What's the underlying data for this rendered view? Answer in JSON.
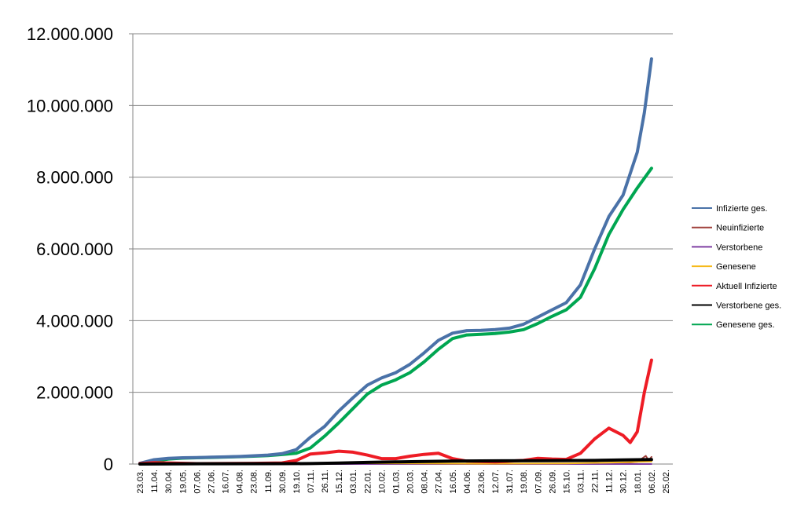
{
  "chart_data": {
    "type": "line",
    "title": "",
    "xlabel": "",
    "ylabel": "",
    "ylim": [
      0,
      12000000
    ],
    "yticks": [
      0,
      2000000,
      4000000,
      6000000,
      8000000,
      10000000,
      12000000
    ],
    "ytick_labels": [
      "0",
      "2.000.000",
      "4.000.000",
      "6.000.000",
      "8.000.000",
      "10.000.000",
      "12.000.000"
    ],
    "grid": true,
    "legend_position": "right",
    "x_labels": [
      "23.03.",
      "11.04.",
      "30.04.",
      "19.05.",
      "07.06.",
      "27.06.",
      "16.07.",
      "04.08.",
      "23.08.",
      "11.09.",
      "30.09.",
      "19.10.",
      "07.11.",
      "26.11.",
      "15.12.",
      "03.01.",
      "22.01.",
      "10.02.",
      "01.03.",
      "20.03.",
      "08.04.",
      "27.04.",
      "16.05.",
      "04.06.",
      "23.06.",
      "12.07.",
      "31.07.",
      "19.08.",
      "07.09.",
      "26.09.",
      "15.10.",
      "03.11.",
      "22.11.",
      "11.12.",
      "30.12.",
      "18.01.",
      "06.02.",
      "25.02."
    ],
    "x_index_range": [
      0,
      37
    ],
    "series": [
      {
        "name": "Infizierte ges.",
        "color": "#4a72a8",
        "points": [
          [
            0,
            20000
          ],
          [
            1,
            120000
          ],
          [
            2,
            160000
          ],
          [
            3,
            175000
          ],
          [
            4,
            180000
          ],
          [
            5,
            190000
          ],
          [
            6,
            200000
          ],
          [
            7,
            210000
          ],
          [
            8,
            230000
          ],
          [
            9,
            250000
          ],
          [
            10,
            290000
          ],
          [
            11,
            400000
          ],
          [
            12,
            750000
          ],
          [
            13,
            1050000
          ],
          [
            14,
            1480000
          ],
          [
            15,
            1850000
          ],
          [
            16,
            2200000
          ],
          [
            17,
            2400000
          ],
          [
            18,
            2550000
          ],
          [
            19,
            2780000
          ],
          [
            20,
            3100000
          ],
          [
            21,
            3450000
          ],
          [
            22,
            3650000
          ],
          [
            23,
            3720000
          ],
          [
            24,
            3730000
          ],
          [
            25,
            3750000
          ],
          [
            26,
            3790000
          ],
          [
            27,
            3900000
          ],
          [
            28,
            4100000
          ],
          [
            29,
            4300000
          ],
          [
            30,
            4500000
          ],
          [
            31,
            5000000
          ],
          [
            32,
            6000000
          ],
          [
            33,
            6900000
          ],
          [
            34,
            7500000
          ],
          [
            35,
            8700000
          ],
          [
            35.5,
            9800000
          ],
          [
            36,
            11300000
          ]
        ]
      },
      {
        "name": "Neuinfizierte",
        "color": "#a0413c",
        "points": [
          [
            0,
            1000
          ],
          [
            5,
            500
          ],
          [
            10,
            2000
          ],
          [
            14,
            25000
          ],
          [
            16,
            15000
          ],
          [
            20,
            15000
          ],
          [
            23,
            3000
          ],
          [
            28,
            10000
          ],
          [
            32,
            20000
          ],
          [
            34,
            25000
          ],
          [
            35,
            60000
          ],
          [
            35.6,
            230000
          ],
          [
            35.8,
            100000
          ],
          [
            36,
            200000
          ]
        ]
      },
      {
        "name": "Verstorbene",
        "color": "#7f3fa3",
        "points": [
          [
            0,
            0
          ],
          [
            10,
            200
          ],
          [
            14,
            800
          ],
          [
            16,
            900
          ],
          [
            20,
            600
          ],
          [
            25,
            100
          ],
          [
            30,
            300
          ],
          [
            33,
            600
          ],
          [
            36,
            800
          ]
        ]
      },
      {
        "name": "Genesene",
        "color": "#f6b91a",
        "points": [
          [
            0,
            0
          ],
          [
            10,
            2000
          ],
          [
            14,
            20000
          ],
          [
            16,
            22000
          ],
          [
            20,
            18000
          ],
          [
            24,
            8000
          ],
          [
            30,
            15000
          ],
          [
            33,
            40000
          ],
          [
            35,
            60000
          ],
          [
            36,
            70000
          ]
        ]
      },
      {
        "name": "Aktuell Infizierte",
        "color": "#ee1c25",
        "points": [
          [
            0,
            10000
          ],
          [
            1,
            40000
          ],
          [
            2,
            30000
          ],
          [
            4,
            10000
          ],
          [
            8,
            20000
          ],
          [
            10,
            30000
          ],
          [
            11,
            100000
          ],
          [
            12,
            280000
          ],
          [
            13,
            310000
          ],
          [
            14,
            360000
          ],
          [
            15,
            330000
          ],
          [
            16,
            250000
          ],
          [
            17,
            150000
          ],
          [
            18,
            150000
          ],
          [
            19,
            220000
          ],
          [
            20,
            270000
          ],
          [
            21,
            300000
          ],
          [
            22,
            150000
          ],
          [
            23,
            80000
          ],
          [
            25,
            60000
          ],
          [
            27,
            100000
          ],
          [
            28,
            160000
          ],
          [
            29,
            140000
          ],
          [
            30,
            130000
          ],
          [
            31,
            300000
          ],
          [
            32,
            700000
          ],
          [
            33,
            1000000
          ],
          [
            34,
            800000
          ],
          [
            34.5,
            600000
          ],
          [
            35,
            900000
          ],
          [
            35.5,
            2000000
          ],
          [
            36,
            2900000
          ]
        ]
      },
      {
        "name": "Verstorbene ges.",
        "color": "#000000",
        "points": [
          [
            0,
            0
          ],
          [
            5,
            9000
          ],
          [
            10,
            10000
          ],
          [
            12,
            14000
          ],
          [
            14,
            28000
          ],
          [
            16,
            45000
          ],
          [
            18,
            60000
          ],
          [
            20,
            70000
          ],
          [
            22,
            80000
          ],
          [
            24,
            88000
          ],
          [
            28,
            92000
          ],
          [
            32,
            100000
          ],
          [
            34,
            115000
          ],
          [
            36,
            125000
          ]
        ]
      },
      {
        "name": "Genesene ges.",
        "color": "#00a651",
        "points": [
          [
            0,
            10000
          ],
          [
            1,
            80000
          ],
          [
            2,
            140000
          ],
          [
            3,
            165000
          ],
          [
            4,
            175000
          ],
          [
            5,
            185000
          ],
          [
            6,
            195000
          ],
          [
            7,
            205000
          ],
          [
            8,
            220000
          ],
          [
            9,
            235000
          ],
          [
            10,
            265000
          ],
          [
            11,
            300000
          ],
          [
            12,
            450000
          ],
          [
            13,
            780000
          ],
          [
            14,
            1150000
          ],
          [
            15,
            1550000
          ],
          [
            16,
            1950000
          ],
          [
            17,
            2200000
          ],
          [
            18,
            2350000
          ],
          [
            19,
            2550000
          ],
          [
            20,
            2850000
          ],
          [
            21,
            3200000
          ],
          [
            22,
            3500000
          ],
          [
            23,
            3600000
          ],
          [
            24,
            3620000
          ],
          [
            25,
            3640000
          ],
          [
            26,
            3680000
          ],
          [
            27,
            3750000
          ],
          [
            28,
            3920000
          ],
          [
            29,
            4120000
          ],
          [
            30,
            4300000
          ],
          [
            31,
            4650000
          ],
          [
            32,
            5450000
          ],
          [
            33,
            6400000
          ],
          [
            34,
            7100000
          ],
          [
            35,
            7700000
          ],
          [
            36,
            8250000
          ]
        ]
      }
    ]
  }
}
